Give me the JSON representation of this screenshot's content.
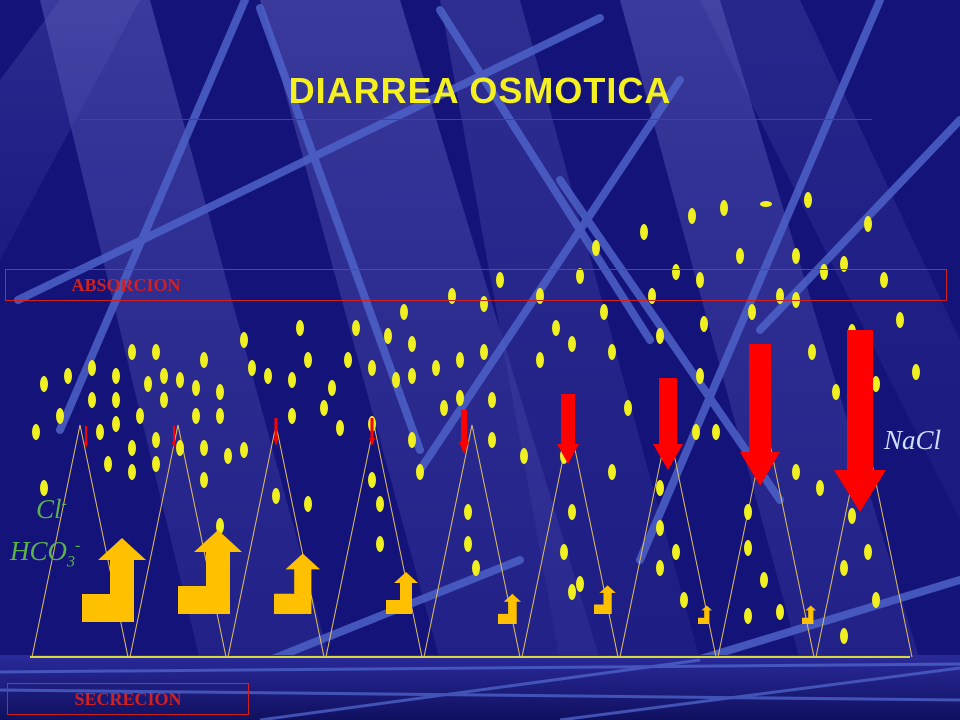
{
  "slide": {
    "title": "DIARREA OSMOTICA",
    "absorcion_label": "ABSORCION",
    "secrecion_label": "SECRECION",
    "ions_left": {
      "line1_base": "Cl",
      "line1_sup": "-",
      "line2_base": "HCO",
      "line2_sub": "3",
      "line2_sup": "-"
    },
    "ion_right": "NaCl"
  },
  "colors": {
    "background": "#13137a",
    "title": "#f5f020",
    "particles": "#f0f020",
    "absorption_arrows": "#ff0000",
    "secretion_arrows": "#ffc000",
    "ion_text": "#5cb34a"
  },
  "icons": {
    "absorption_arrow": "red-down-arrow-icon",
    "secretion_arrow": "yellow-corner-up-arrow-icon"
  }
}
